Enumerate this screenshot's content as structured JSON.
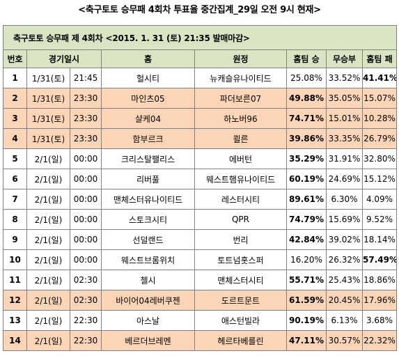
{
  "top_title": "<축구토토 승무패 4회차 투표율 중간집계_29일 오전 9시 현재>",
  "subtitle": "축구토토 승무패 제 4회차 <2015. 1. 31 (토) 21:35 발매마감>",
  "headers": {
    "no": "번호",
    "datetime": "경기일시",
    "home": "홈",
    "away": "원정",
    "home_win": "홈팀 승",
    "draw": "무승부",
    "home_loss": "홈팀 패"
  },
  "highlight_color": "#fbd5b5",
  "header_color": "#d9e4c2",
  "rows": [
    {
      "no": "1",
      "date": "1/31(토)",
      "time": "21:45",
      "home": "헐시티",
      "away": "뉴캐슬유나이티드",
      "win": "25.08%",
      "draw": "33.52%",
      "loss": "41.41%",
      "hl": false,
      "bold": "loss"
    },
    {
      "no": "2",
      "date": "1/31(토)",
      "time": "23:30",
      "home": "마인츠05",
      "away": "파더보른07",
      "win": "49.88%",
      "draw": "35.05%",
      "loss": "15.07%",
      "hl": true,
      "bold": "win"
    },
    {
      "no": "3",
      "date": "1/31(토)",
      "time": "23:30",
      "home": "샬케04",
      "away": "하노버96",
      "win": "74.71%",
      "draw": "15.01%",
      "loss": "10.28%",
      "hl": true,
      "bold": "win"
    },
    {
      "no": "4",
      "date": "1/31(토)",
      "time": "23:30",
      "home": "함부르크",
      "away": "쾰른",
      "win": "39.86%",
      "draw": "33.35%",
      "loss": "26.79%",
      "hl": true,
      "bold": "win"
    },
    {
      "no": "5",
      "date": "2/1(일)",
      "time": "00:00",
      "home": "크리스탈팰리스",
      "away": "에버턴",
      "win": "35.29%",
      "draw": "31.91%",
      "loss": "32.80%",
      "hl": false,
      "bold": "win"
    },
    {
      "no": "6",
      "date": "2/1(일)",
      "time": "00:00",
      "home": "리버풀",
      "away": "웨스트햄유나이티드",
      "win": "60.19%",
      "draw": "24.69%",
      "loss": "15.12%",
      "hl": false,
      "bold": "win"
    },
    {
      "no": "7",
      "date": "2/1(일)",
      "time": "00:00",
      "home": "맨체스터유나이티드",
      "away": "레스터시티",
      "win": "89.61%",
      "draw": "6.30%",
      "loss": "4.09%",
      "hl": false,
      "bold": "win"
    },
    {
      "no": "8",
      "date": "2/1(일)",
      "time": "00:00",
      "home": "스토크시티",
      "away": "QPR",
      "win": "74.79%",
      "draw": "15.69%",
      "loss": "9.52%",
      "hl": false,
      "bold": "win"
    },
    {
      "no": "9",
      "date": "2/1(일)",
      "time": "00:00",
      "home": "선덜랜드",
      "away": "번리",
      "win": "42.84%",
      "draw": "39.02%",
      "loss": "18.14%",
      "hl": false,
      "bold": "win"
    },
    {
      "no": "10",
      "date": "2/1(일)",
      "time": "00:00",
      "home": "웨스트브롬위치",
      "away": "토트넘홋스퍼",
      "win": "16.20%",
      "draw": "26.32%",
      "loss": "57.49%",
      "hl": false,
      "bold": "loss"
    },
    {
      "no": "11",
      "date": "2/1(일)",
      "time": "02:30",
      "home": "첼시",
      "away": "맨체스터시티",
      "win": "55.71%",
      "draw": "25.43%",
      "loss": "18.86%",
      "hl": false,
      "bold": "win"
    },
    {
      "no": "12",
      "date": "2/1(일)",
      "time": "02:30",
      "home": "바이어04레버쿠젠",
      "away": "도르트문트",
      "win": "61.59%",
      "draw": "20.45%",
      "loss": "17.96%",
      "hl": true,
      "bold": "win"
    },
    {
      "no": "13",
      "date": "2/1(일)",
      "time": "22:30",
      "home": "아스날",
      "away": "애스턴빌라",
      "win": "90.19%",
      "draw": "6.13%",
      "loss": "3.68%",
      "hl": false,
      "bold": "win"
    },
    {
      "no": "14",
      "date": "2/1(일)",
      "time": "22:30",
      "home": "베르더브레멘",
      "away": "헤르타베를린",
      "win": "47.11%",
      "draw": "30.57%",
      "loss": "22.32%",
      "hl": true,
      "bold": "win"
    }
  ]
}
